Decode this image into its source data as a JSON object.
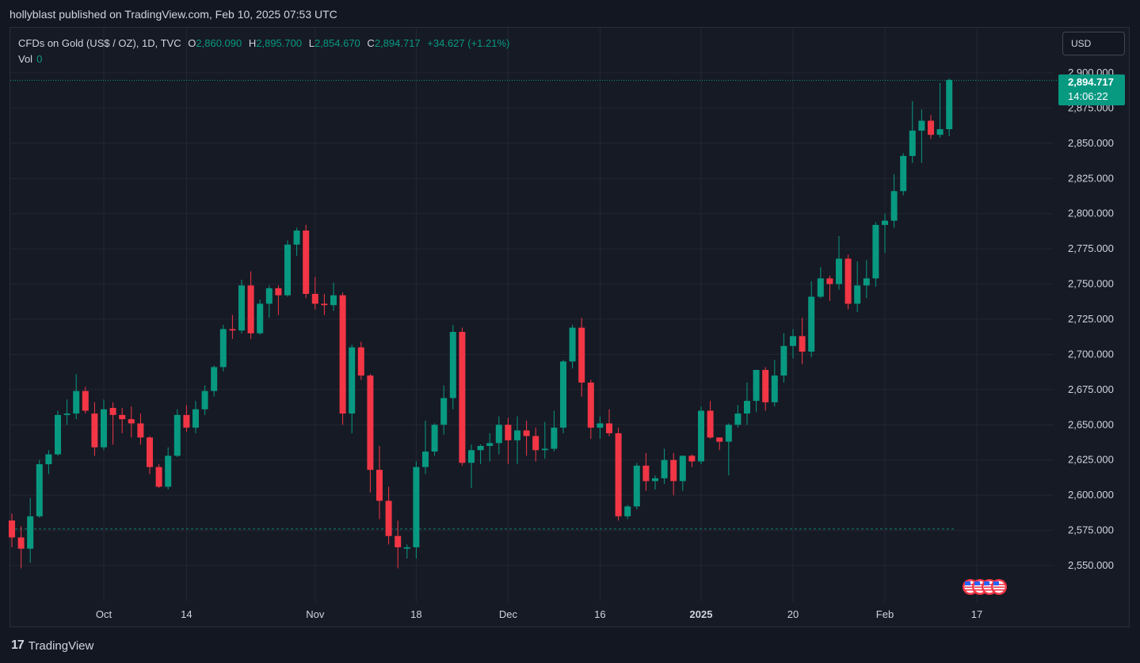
{
  "header": {
    "published": "hollyblast published on TradingView.com, Feb 10, 2025 07:53 UTC"
  },
  "legend": {
    "symbol": "CFDs on Gold (US$ / OZ), 1D, TVC",
    "open_label": "O",
    "open": "2,860.090",
    "high_label": "H",
    "high": "2,895.700",
    "low_label": "L",
    "low": "2,854.670",
    "close_label": "C",
    "close": "2,894.717",
    "change": "+34.627 (+1.21%)",
    "vol_label": "Vol",
    "vol": "0"
  },
  "currency_button": "USD",
  "price_tag": {
    "price": "2,894.717",
    "countdown": "14:06:22"
  },
  "footer": {
    "brand": "TradingView"
  },
  "colors": {
    "up": "#089981",
    "down": "#f23645",
    "bg": "#161a25",
    "grid": "#232733"
  },
  "chart_data": {
    "type": "candlestick",
    "ylim": [
      2535,
      2906
    ],
    "y_ticks": [
      2550,
      2575,
      2600,
      2625,
      2650,
      2675,
      2700,
      2725,
      2750,
      2775,
      2800,
      2825,
      2850,
      2875,
      2900
    ],
    "y_tick_labels": [
      "2,550.000",
      "2,575.000",
      "2,600.000",
      "2,625.000",
      "2,650.000",
      "2,675.000",
      "2,700.000",
      "2,725.000",
      "2,750.000",
      "2,775.000",
      "2,800.000",
      "2,825.000",
      "2,850.000",
      "2,875.000",
      "2,900.000"
    ],
    "x_ticks": [
      {
        "label": "Oct",
        "index": 10,
        "bold": false
      },
      {
        "label": "14",
        "index": 19,
        "bold": false
      },
      {
        "label": "Nov",
        "index": 33,
        "bold": false
      },
      {
        "label": "18",
        "index": 44,
        "bold": false
      },
      {
        "label": "Dec",
        "index": 54,
        "bold": false
      },
      {
        "label": "16",
        "index": 64,
        "bold": false
      },
      {
        "label": "2025",
        "index": 75,
        "bold": true
      },
      {
        "label": "20",
        "index": 85,
        "bold": false
      },
      {
        "label": "Feb",
        "index": 95,
        "bold": false
      },
      {
        "label": "17",
        "index": 105,
        "bold": false
      }
    ],
    "previous_close_line": 2576,
    "last_price": 2894.717,
    "candles": [
      [
        2582,
        2587,
        2563,
        2570
      ],
      [
        2570,
        2578,
        2548,
        2562
      ],
      [
        2562,
        2598,
        2552,
        2585
      ],
      [
        2585,
        2625,
        2584,
        2622
      ],
      [
        2622,
        2632,
        2615,
        2629
      ],
      [
        2629,
        2660,
        2628,
        2657
      ],
      [
        2657,
        2668,
        2650,
        2658
      ],
      [
        2658,
        2686,
        2654,
        2674
      ],
      [
        2674,
        2677,
        2658,
        2660
      ],
      [
        2658,
        2666,
        2628,
        2634
      ],
      [
        2634,
        2668,
        2632,
        2661
      ],
      [
        2662,
        2666,
        2636,
        2657
      ],
      [
        2657,
        2662,
        2644,
        2654
      ],
      [
        2654,
        2663,
        2641,
        2651
      ],
      [
        2651,
        2658,
        2636,
        2641
      ],
      [
        2641,
        2642,
        2615,
        2620
      ],
      [
        2620,
        2622,
        2605,
        2606
      ],
      [
        2606,
        2634,
        2604,
        2628
      ],
      [
        2628,
        2661,
        2627,
        2657
      ],
      [
        2657,
        2664,
        2645,
        2648
      ],
      [
        2648,
        2667,
        2644,
        2661
      ],
      [
        2661,
        2678,
        2657,
        2674
      ],
      [
        2674,
        2692,
        2670,
        2691
      ],
      [
        2691,
        2721,
        2688,
        2718
      ],
      [
        2718,
        2728,
        2711,
        2717
      ],
      [
        2717,
        2753,
        2715,
        2749
      ],
      [
        2749,
        2759,
        2711,
        2715
      ],
      [
        2715,
        2739,
        2714,
        2736
      ],
      [
        2736,
        2749,
        2726,
        2747
      ],
      [
        2747,
        2749,
        2728,
        2742
      ],
      [
        2742,
        2781,
        2741,
        2778
      ],
      [
        2778,
        2790,
        2770,
        2788
      ],
      [
        2788,
        2792,
        2740,
        2743
      ],
      [
        2743,
        2755,
        2732,
        2736
      ],
      [
        2736,
        2743,
        2728,
        2735
      ],
      [
        2735,
        2751,
        2731,
        2742
      ],
      [
        2742,
        2744,
        2650,
        2658
      ],
      [
        2658,
        2707,
        2644,
        2705
      ],
      [
        2705,
        2709,
        2682,
        2685
      ],
      [
        2685,
        2686,
        2602,
        2618
      ],
      [
        2618,
        2635,
        2583,
        2596
      ],
      [
        2596,
        2606,
        2565,
        2571
      ],
      [
        2571,
        2582,
        2548,
        2563
      ],
      [
        2562,
        2565,
        2555,
        2563
      ],
      [
        2563,
        2624,
        2555,
        2620
      ],
      [
        2620,
        2653,
        2615,
        2631
      ],
      [
        2631,
        2651,
        2628,
        2650
      ],
      [
        2650,
        2678,
        2643,
        2669
      ],
      [
        2669,
        2721,
        2661,
        2716
      ],
      [
        2716,
        2719,
        2621,
        2623
      ],
      [
        2623,
        2636,
        2605,
        2632
      ],
      [
        2632,
        2636,
        2622,
        2635
      ],
      [
        2635,
        2644,
        2624,
        2637
      ],
      [
        2637,
        2656,
        2629,
        2650
      ],
      [
        2650,
        2655,
        2622,
        2639
      ],
      [
        2639,
        2656,
        2622,
        2646
      ],
      [
        2646,
        2653,
        2628,
        2642
      ],
      [
        2642,
        2648,
        2624,
        2632
      ],
      [
        2632,
        2652,
        2626,
        2633
      ],
      [
        2633,
        2660,
        2631,
        2648
      ],
      [
        2648,
        2696,
        2644,
        2695
      ],
      [
        2695,
        2721,
        2690,
        2719
      ],
      [
        2719,
        2726,
        2670,
        2680
      ],
      [
        2680,
        2682,
        2640,
        2648
      ],
      [
        2648,
        2656,
        2640,
        2651
      ],
      [
        2651,
        2661,
        2642,
        2644
      ],
      [
        2644,
        2648,
        2582,
        2585
      ],
      [
        2585,
        2593,
        2583,
        2592
      ],
      [
        2592,
        2623,
        2590,
        2621
      ],
      [
        2621,
        2630,
        2603,
        2610
      ],
      [
        2610,
        2614,
        2604,
        2612
      ],
      [
        2612,
        2633,
        2608,
        2625
      ],
      [
        2625,
        2630,
        2600,
        2610
      ],
      [
        2610,
        2627,
        2603,
        2628
      ],
      [
        2628,
        2629,
        2620,
        2624
      ],
      [
        2624,
        2663,
        2622,
        2660
      ],
      [
        2660,
        2667,
        2640,
        2641
      ],
      [
        2641,
        2640,
        2632,
        2638
      ],
      [
        2638,
        2651,
        2614,
        2650
      ],
      [
        2650,
        2664,
        2648,
        2658
      ],
      [
        2658,
        2680,
        2650,
        2667
      ],
      [
        2667,
        2686,
        2659,
        2689
      ],
      [
        2689,
        2691,
        2660,
        2666
      ],
      [
        2666,
        2696,
        2663,
        2685
      ],
      [
        2685,
        2715,
        2680,
        2706
      ],
      [
        2706,
        2718,
        2697,
        2713
      ],
      [
        2713,
        2726,
        2693,
        2702
      ],
      [
        2702,
        2752,
        2698,
        2741
      ],
      [
        2741,
        2762,
        2740,
        2754
      ],
      [
        2754,
        2756,
        2738,
        2750
      ],
      [
        2750,
        2784,
        2746,
        2768
      ],
      [
        2768,
        2771,
        2732,
        2736
      ],
      [
        2736,
        2766,
        2730,
        2749
      ],
      [
        2749,
        2767,
        2740,
        2754
      ],
      [
        2754,
        2794,
        2748,
        2792
      ],
      [
        2792,
        2800,
        2772,
        2795
      ],
      [
        2795,
        2828,
        2790,
        2816
      ],
      [
        2816,
        2843,
        2813,
        2841
      ],
      [
        2841,
        2880,
        2836,
        2859
      ],
      [
        2859,
        2874,
        2836,
        2866
      ],
      [
        2866,
        2870,
        2853,
        2856
      ],
      [
        2856,
        2893,
        2854,
        2860
      ],
      [
        2860,
        2896,
        2855,
        2895
      ]
    ],
    "event_markers_count": 4
  }
}
